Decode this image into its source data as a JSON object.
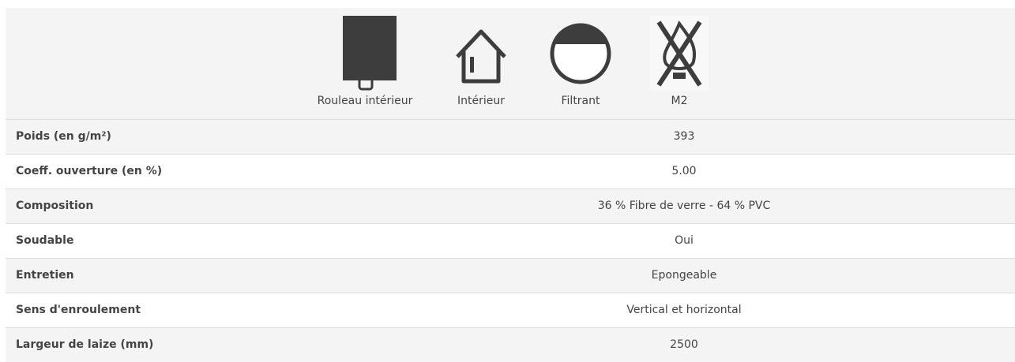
{
  "icons": [
    {
      "label": "Rouleau intérieur"
    },
    {
      "label": "Intérieur"
    },
    {
      "label": "Filtrant"
    },
    {
      "label": "M2"
    }
  ],
  "table": {
    "rows": [
      [
        "Poids (en g/m²)",
        "393"
      ],
      [
        "Coeff. ouverture (en %)",
        "5.00"
      ],
      [
        "Composition",
        "36 % Fibre de verre - 64 % PVC"
      ],
      [
        "Soudable",
        "Oui"
      ],
      [
        "Entretien",
        "Epongeable"
      ],
      [
        "Sens d'enroulement",
        "Vertical et horizontal"
      ],
      [
        "Largeur de laize (mm)",
        "2500"
      ]
    ]
  }
}
